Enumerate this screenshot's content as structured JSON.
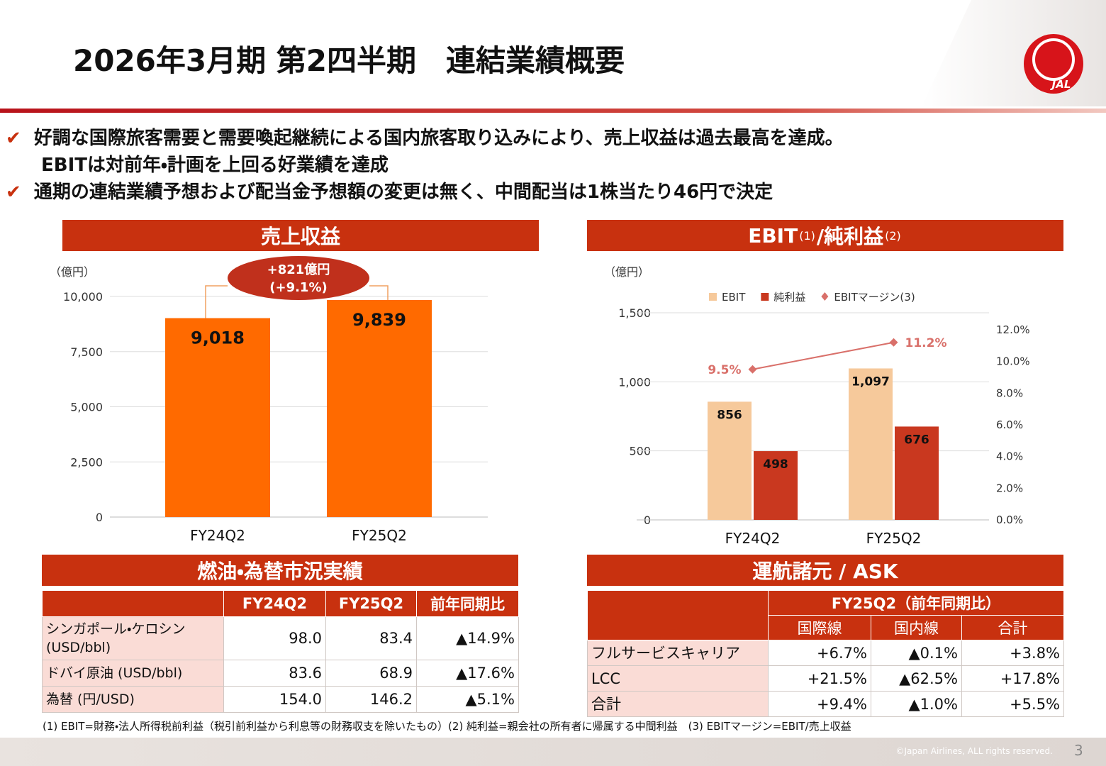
{
  "header": {
    "title": "2026年3月期 第2四半期　連結業績概要",
    "logo": "JAL"
  },
  "bullets": [
    [
      "好調な国際旅客需要と需要喚起継続による国内旅客取り込みにより、売上収益は過去最高を達成。",
      "EBITは対前年・計画を上回る好業績を達成"
    ],
    [
      "通期の連結業績予想および配当金予想額の変更は無く、中間配当は1株当たり46円で決定"
    ]
  ],
  "chart_data": [
    {
      "type": "bar",
      "title": "売上収益",
      "unit": "（億円）",
      "categories": [
        "FY24Q2",
        "FY25Q2"
      ],
      "values": [
        9018,
        9839
      ],
      "value_labels": [
        "9,018",
        "9,839"
      ],
      "color": "#ff6a00",
      "ylim": [
        0,
        10000
      ],
      "yticks": [
        0,
        {
          "value": 2500,
          "label": "2,500"
        },
        {
          "value": 5000,
          "label": "5,000"
        },
        {
          "value": 7500,
          "label": "7,500"
        },
        {
          "value": 10000,
          "label": "10,000"
        }
      ],
      "grid": true,
      "annotation": [
        "+821億円",
        "(+9.1%)"
      ]
    },
    {
      "type": "combo",
      "title": [
        "EBIT ",
        "(1)",
        "/純利益 ",
        "(2)"
      ],
      "unit": "（億円）",
      "categories": [
        "FY24Q2",
        "FY25Q2"
      ],
      "series": [
        {
          "name": "EBIT",
          "type": "bar",
          "color": "#f6c99b",
          "values": [
            856,
            1097
          ],
          "value_labels": [
            "856",
            "1,097"
          ]
        },
        {
          "name": "純利益",
          "type": "bar",
          "color": "#c9381f",
          "values": [
            498,
            676
          ]
        },
        {
          "name": "EBITマージン(3)",
          "type": "line",
          "axis": "y2",
          "color": "#d9706a",
          "values": [
            9.5,
            11.2
          ],
          "value_labels": [
            "9.5%",
            "11.2%"
          ]
        }
      ],
      "ylim": [
        0,
        1500
      ],
      "yticks": [
        0,
        500,
        {
          "value": 1000,
          "label": "1,000"
        },
        {
          "value": 1500,
          "label": "1,500"
        }
      ],
      "y2lim": [
        0,
        13.07
      ],
      "y2ticks": [
        {
          "value": 0,
          "label": "0.0%"
        },
        {
          "value": 2,
          "label": "2.0%"
        },
        {
          "value": 4,
          "label": "4.0%"
        },
        {
          "value": 6,
          "label": "6.0%"
        },
        {
          "value": 8,
          "label": "8.0%"
        },
        {
          "value": 10,
          "label": "10.0%"
        },
        {
          "value": 12,
          "label": "12.0%"
        }
      ],
      "grid": true,
      "legend": "top"
    }
  ],
  "fuel_table": {
    "title": "燃油・為替市況実績",
    "header": [
      "FY24Q2",
      "FY25Q2",
      "前年同期比"
    ],
    "rows": [
      [
        "シンガポール・ケロシン (USD/bbl)",
        "98.0",
        "83.4",
        "▲14.9%"
      ],
      [
        "ドバイ原油 (USD/bbl)",
        "83.6",
        "68.9",
        "▲17.6%"
      ],
      [
        "為替 (円/USD)",
        "154.0",
        "146.2",
        "▲5.1%"
      ]
    ]
  },
  "ask_table": {
    "title": "運航諸元 / ASK",
    "group_header": "FY25Q2（前年同期比）",
    "header": [
      "国際線",
      "国内線",
      "合計"
    ],
    "rows": [
      [
        "フルサービスキャリア",
        "+6.7%",
        "▲0.1%",
        "+3.8%"
      ],
      [
        "LCC",
        "+21.5%",
        "▲62.5%",
        "+17.8%"
      ],
      [
        "合計",
        "+9.4%",
        "▲1.0%",
        "+5.5%"
      ]
    ]
  },
  "footnote": "(1) EBIT=財務・法人所得税前利益（税引前利益から利息等の財務収支を除いたもの）(2) 純利益=親会社の所有者に帰属する中間利益　(3) EBITマージン=EBIT/売上収益",
  "footer": {
    "copyright": "©Japan Airlines, ALL rights reserved.",
    "page": "3"
  }
}
